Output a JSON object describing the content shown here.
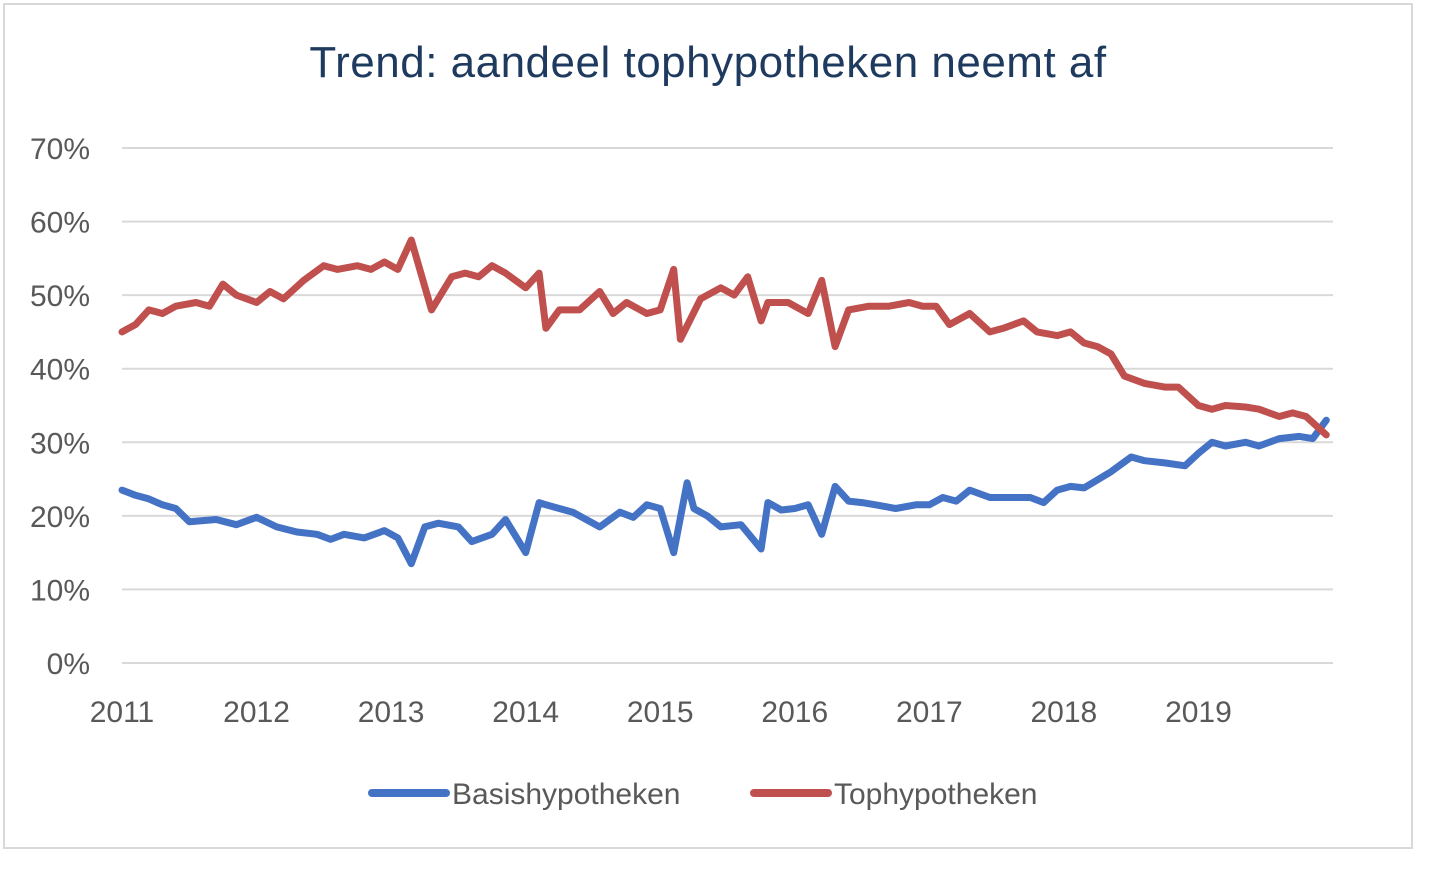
{
  "chart_data": {
    "type": "line",
    "title": "Trend: aandeel tophypotheken neemt af",
    "y_tick_labels": [
      "0%",
      "10%",
      "20%",
      "30%",
      "40%",
      "50%",
      "60%",
      "70%"
    ],
    "x_tick_labels": [
      "2011",
      "2012",
      "2013",
      "2014",
      "2015",
      "2016",
      "2017",
      "2018",
      "2019"
    ],
    "ylim": [
      0,
      70
    ],
    "xlim": [
      2011,
      2020
    ],
    "grid": "horizontal",
    "legend_position": "bottom",
    "colors": {
      "basis": "#4472c4",
      "top": "#c0504d"
    },
    "series": [
      {
        "name": "Basishypotheken",
        "x": [
          2011.0,
          2011.1,
          2011.2,
          2011.3,
          2011.4,
          2011.5,
          2011.7,
          2011.85,
          2012.0,
          2012.15,
          2012.3,
          2012.45,
          2012.55,
          2012.65,
          2012.8,
          2012.95,
          2013.05,
          2013.15,
          2013.25,
          2013.35,
          2013.5,
          2013.6,
          2013.75,
          2013.85,
          2014.0,
          2014.1,
          2014.15,
          2014.25,
          2014.35,
          2014.55,
          2014.7,
          2014.8,
          2014.9,
          2015.0,
          2015.1,
          2015.2,
          2015.25,
          2015.35,
          2015.45,
          2015.6,
          2015.75,
          2015.8,
          2015.9,
          2016.0,
          2016.1,
          2016.2,
          2016.3,
          2016.4,
          2016.5,
          2016.6,
          2016.75,
          2016.9,
          2017.0,
          2017.1,
          2017.2,
          2017.3,
          2017.45,
          2017.6,
          2017.75,
          2017.85,
          2017.95,
          2018.05,
          2018.15,
          2018.35,
          2018.5,
          2018.6,
          2018.75,
          2018.9,
          2019.0,
          2019.1,
          2019.2,
          2019.35,
          2019.45,
          2019.6,
          2019.75,
          2019.85,
          2019.95
        ],
        "values": [
          23.5,
          22.8,
          22.3,
          21.5,
          21.0,
          19.2,
          19.5,
          18.8,
          19.8,
          18.5,
          17.8,
          17.5,
          16.8,
          17.5,
          17.0,
          18.0,
          17.0,
          13.5,
          18.5,
          19.0,
          18.5,
          16.5,
          17.5,
          19.5,
          15.0,
          21.8,
          21.5,
          21.0,
          20.5,
          18.5,
          20.5,
          19.8,
          21.5,
          21.0,
          15.0,
          24.5,
          21.0,
          20.0,
          18.5,
          18.8,
          15.5,
          21.8,
          20.8,
          21.0,
          21.5,
          17.5,
          24.0,
          22.0,
          21.8,
          21.5,
          21.0,
          21.5,
          21.5,
          22.5,
          22.0,
          23.5,
          22.5,
          22.5,
          22.5,
          21.8,
          23.5,
          24.0,
          23.8,
          26.0,
          28.0,
          27.5,
          27.2,
          26.8,
          28.5,
          30.0,
          29.5,
          30.0,
          29.5,
          30.5,
          30.8,
          30.5,
          33.0
        ]
      },
      {
        "name": "Tophypotheken",
        "x": [
          2011.0,
          2011.1,
          2011.2,
          2011.3,
          2011.4,
          2011.55,
          2011.65,
          2011.75,
          2011.85,
          2012.0,
          2012.1,
          2012.2,
          2012.35,
          2012.5,
          2012.6,
          2012.75,
          2012.85,
          2012.95,
          2013.05,
          2013.15,
          2013.3,
          2013.45,
          2013.55,
          2013.65,
          2013.75,
          2013.85,
          2014.0,
          2014.1,
          2014.15,
          2014.25,
          2014.4,
          2014.55,
          2014.65,
          2014.75,
          2014.9,
          2015.0,
          2015.1,
          2015.15,
          2015.3,
          2015.45,
          2015.55,
          2015.65,
          2015.75,
          2015.8,
          2015.95,
          2016.0,
          2016.1,
          2016.2,
          2016.3,
          2016.4,
          2016.55,
          2016.7,
          2016.85,
          2016.95,
          2017.05,
          2017.15,
          2017.3,
          2017.45,
          2017.55,
          2017.7,
          2017.8,
          2017.95,
          2018.05,
          2018.15,
          2018.25,
          2018.35,
          2018.45,
          2018.6,
          2018.75,
          2018.85,
          2019.0,
          2019.1,
          2019.2,
          2019.35,
          2019.45,
          2019.6,
          2019.7,
          2019.8,
          2019.95
        ],
        "values": [
          45.0,
          46.0,
          48.0,
          47.5,
          48.5,
          49.0,
          48.5,
          51.5,
          50.0,
          49.0,
          50.5,
          49.5,
          52.0,
          54.0,
          53.5,
          54.0,
          53.5,
          54.5,
          53.5,
          57.5,
          48.0,
          52.5,
          53.0,
          52.5,
          54.0,
          53.0,
          51.0,
          53.0,
          45.5,
          48.0,
          48.0,
          50.5,
          47.5,
          49.0,
          47.5,
          48.0,
          53.5,
          44.0,
          49.5,
          51.0,
          50.0,
          52.5,
          46.5,
          49.0,
          49.0,
          48.5,
          47.5,
          52.0,
          43.0,
          48.0,
          48.5,
          48.5,
          49.0,
          48.5,
          48.5,
          46.0,
          47.5,
          45.0,
          45.5,
          46.5,
          45.0,
          44.5,
          45.0,
          43.5,
          43.0,
          42.0,
          39.0,
          38.0,
          37.5,
          37.5,
          35.0,
          34.5,
          35.0,
          34.8,
          34.5,
          33.5,
          34.0,
          33.5,
          31.0
        ]
      }
    ]
  }
}
